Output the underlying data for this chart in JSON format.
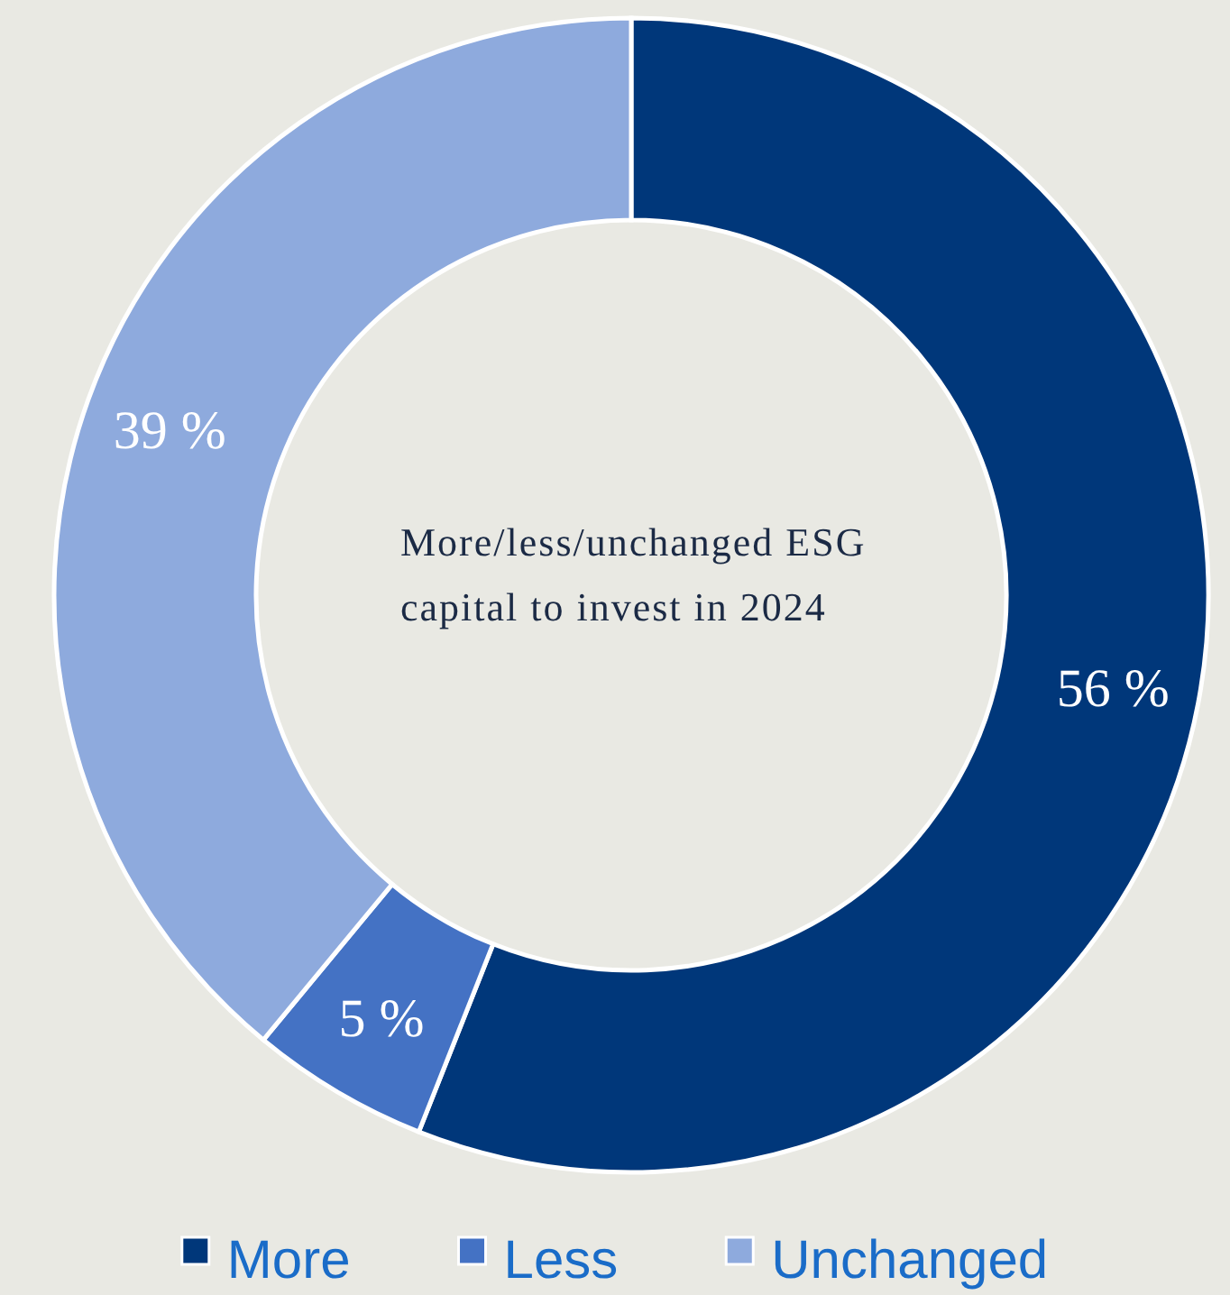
{
  "chart_data": {
    "type": "donut",
    "title": "More/less/unchanged ESG capital to invest in 2024",
    "categories": [
      "More",
      "Less",
      "Unchanged"
    ],
    "values": [
      56,
      5,
      39
    ],
    "colors": [
      "#00377a",
      "#4472c4",
      "#8eaadd"
    ],
    "value_labels": [
      "56 %",
      "5 %",
      "39 %"
    ],
    "legend": "bottom"
  }
}
